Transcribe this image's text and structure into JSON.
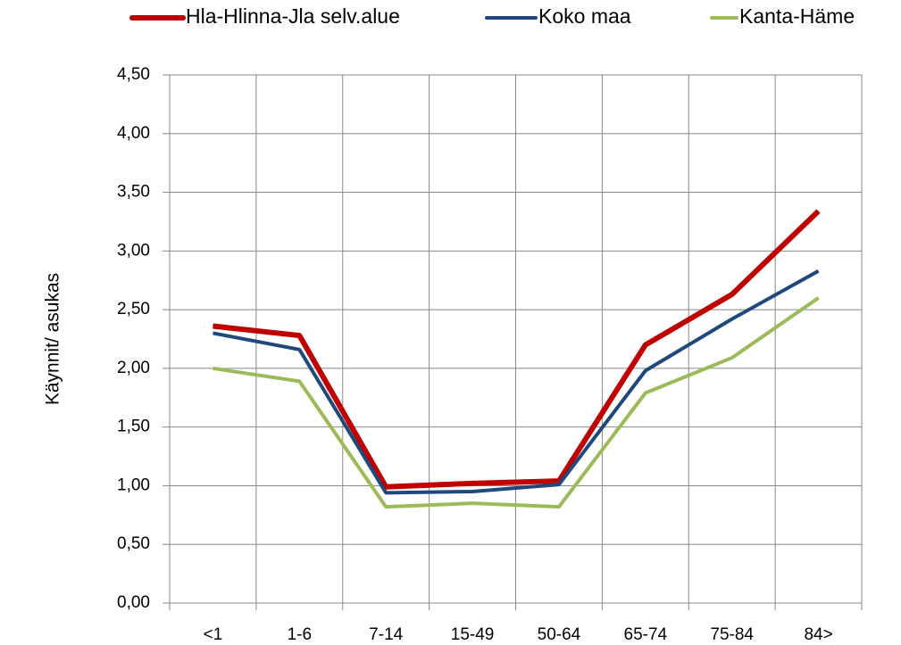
{
  "chart_data": {
    "type": "line",
    "y_label": "Käynnit/ asukas",
    "categories": [
      "<1",
      "1-6",
      "7-14",
      "15-49",
      "50-64",
      "65-74",
      "75-84",
      "84>"
    ],
    "series": [
      {
        "name": "Hla-Hlinna-Jla selv.alue",
        "color": "#c00000",
        "values": [
          2.36,
          2.28,
          0.99,
          1.02,
          1.04,
          2.2,
          2.63,
          3.34
        ]
      },
      {
        "name": "Koko maa",
        "color": "#1f497d",
        "values": [
          2.3,
          2.16,
          0.94,
          0.95,
          1.01,
          1.98,
          2.42,
          2.83
        ]
      },
      {
        "name": "Kanta-Häme",
        "color": "#9bbb59",
        "values": [
          2.0,
          1.89,
          0.82,
          0.85,
          0.82,
          1.79,
          2.09,
          2.6
        ]
      }
    ],
    "ylim": [
      0,
      4.5
    ],
    "yticks": [
      {
        "value": 0,
        "label": "0,00"
      },
      {
        "value": 0.5,
        "label": "0,50"
      },
      {
        "value": 1,
        "label": "1,00"
      },
      {
        "value": 1.5,
        "label": "1,50"
      },
      {
        "value": 2,
        "label": "2,00"
      },
      {
        "value": 2.5,
        "label": "2,50"
      },
      {
        "value": 3,
        "label": "3,00"
      },
      {
        "value": 3.5,
        "label": "3,50"
      },
      {
        "value": 4,
        "label": "4,00"
      },
      {
        "value": 4.5,
        "label": "4,50"
      }
    ],
    "grid": true,
    "legend": "top"
  }
}
